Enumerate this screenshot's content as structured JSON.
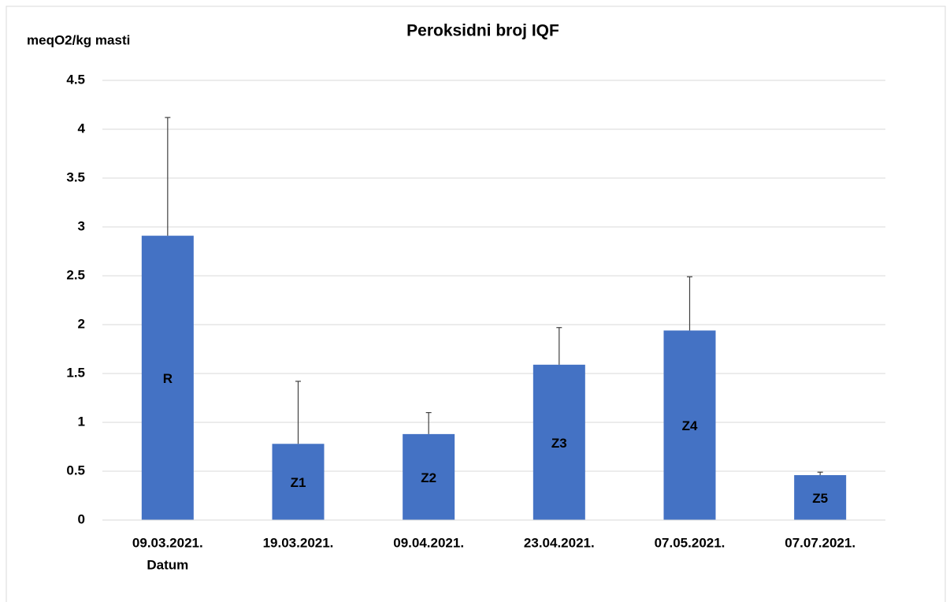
{
  "chart_data": {
    "type": "bar",
    "title": "Peroksidni broj IQF",
    "y_label": "meqO2/kg masti",
    "x_label": "Datum",
    "categories": [
      "09.03.2021.",
      "19.03.2021.",
      "09.04.2021.",
      "23.04.2021.",
      "07.05.2021.",
      "07.07.2021."
    ],
    "values": [
      2.91,
      0.78,
      0.88,
      1.59,
      1.94,
      0.46
    ],
    "errors": [
      1.21,
      0.64,
      0.22,
      0.38,
      0.55,
      0.03
    ],
    "bar_labels": [
      "R",
      "Z1",
      "Z2",
      "Z3",
      "Z4",
      "Z5"
    ],
    "color": "#4472c4",
    "ylim": [
      0,
      4.5
    ],
    "yticks": [
      0,
      0.5,
      1,
      1.5,
      2,
      2.5,
      3,
      3.5,
      4,
      4.5
    ],
    "grid": true
  }
}
